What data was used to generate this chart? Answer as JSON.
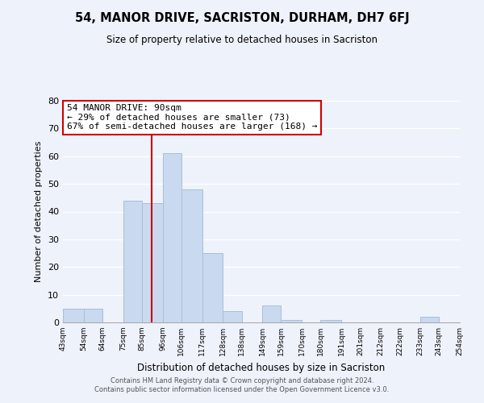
{
  "title": "54, MANOR DRIVE, SACRISTON, DURHAM, DH7 6FJ",
  "subtitle": "Size of property relative to detached houses in Sacriston",
  "xlabel": "Distribution of detached houses by size in Sacriston",
  "ylabel": "Number of detached properties",
  "bin_edges": [
    43,
    54,
    64,
    75,
    85,
    96,
    106,
    117,
    128,
    138,
    149,
    159,
    170,
    180,
    191,
    201,
    212,
    222,
    233,
    243,
    254
  ],
  "bin_counts": [
    5,
    5,
    0,
    44,
    43,
    61,
    48,
    25,
    4,
    0,
    6,
    1,
    0,
    1,
    0,
    0,
    0,
    0,
    2,
    0
  ],
  "bar_color": "#c9d9f0",
  "bar_edge_color": "#a8bfd8",
  "vline_x": 90,
  "vline_color": "#cc0000",
  "ylim": [
    0,
    80
  ],
  "yticks": [
    0,
    10,
    20,
    30,
    40,
    50,
    60,
    70,
    80
  ],
  "tick_labels": [
    "43sqm",
    "54sqm",
    "64sqm",
    "75sqm",
    "85sqm",
    "96sqm",
    "106sqm",
    "117sqm",
    "128sqm",
    "138sqm",
    "149sqm",
    "159sqm",
    "170sqm",
    "180sqm",
    "191sqm",
    "201sqm",
    "212sqm",
    "222sqm",
    "233sqm",
    "243sqm",
    "254sqm"
  ],
  "annotation_title": "54 MANOR DRIVE: 90sqm",
  "annotation_line1": "← 29% of detached houses are smaller (73)",
  "annotation_line2": "67% of semi-detached houses are larger (168) →",
  "annotation_box_color": "#ffffff",
  "annotation_box_edge": "#cc0000",
  "footer1": "Contains HM Land Registry data © Crown copyright and database right 2024.",
  "footer2": "Contains public sector information licensed under the Open Government Licence v3.0.",
  "background_color": "#eef2fb",
  "grid_color": "#ffffff"
}
